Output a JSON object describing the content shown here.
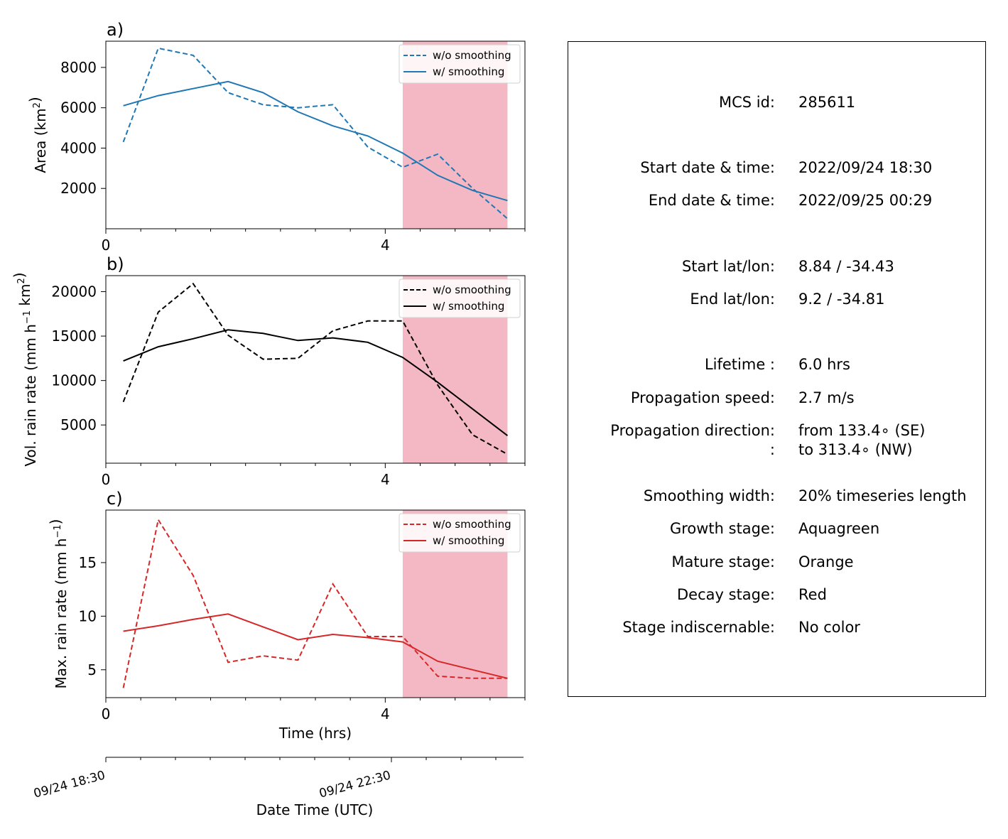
{
  "chart_data": [
    {
      "type": "line",
      "panel_label": "a)",
      "ylabel_main": "Area  (km",
      "ylabel_sup": "2",
      "ylabel_end": ")",
      "x": [
        0.25,
        0.75,
        1.25,
        1.75,
        2.25,
        2.75,
        3.25,
        3.75,
        4.25,
        4.75,
        5.25,
        5.75
      ],
      "xlim": [
        0,
        6
      ],
      "ylim": [
        0,
        9300
      ],
      "xticks": [
        0,
        4
      ],
      "yticks": [
        2000,
        4000,
        6000,
        8000
      ],
      "shade_range": [
        4.25,
        5.75
      ],
      "color": "#1f77b4",
      "legend_position": "upper right",
      "series": [
        {
          "name": "w/o smoothing",
          "dash": true,
          "values": [
            4300,
            8950,
            8600,
            6750,
            6150,
            6000,
            6150,
            4050,
            3050,
            3700,
            2000,
            500
          ]
        },
        {
          "name": "w/ smoothing",
          "dash": false,
          "values": [
            6100,
            6600,
            6950,
            7300,
            6750,
            5800,
            5100,
            4600,
            3750,
            2650,
            1900,
            1400
          ]
        }
      ]
    },
    {
      "type": "line",
      "panel_label": "b)",
      "ylabel_main": "Vol. rain rate (mm h",
      "ylabel_sup": "−1",
      "ylabel_mid": " km",
      "ylabel_sup2": "2",
      "ylabel_end": ")",
      "x": [
        0.25,
        0.75,
        1.25,
        1.75,
        2.25,
        2.75,
        3.25,
        3.75,
        4.25,
        4.75,
        5.25,
        5.75
      ],
      "xlim": [
        0,
        6
      ],
      "ylim": [
        700,
        21800
      ],
      "xticks": [
        0,
        4
      ],
      "yticks": [
        5000,
        10000,
        15000,
        20000
      ],
      "shade_range": [
        4.25,
        5.75
      ],
      "color": "#000000",
      "legend_position": "upper right",
      "series": [
        {
          "name": "w/o smoothing",
          "dash": true,
          "values": [
            7600,
            17700,
            20900,
            15100,
            12400,
            12500,
            15600,
            16700,
            16700,
            9500,
            3900,
            1700
          ]
        },
        {
          "name": "w/ smoothing",
          "dash": false,
          "values": [
            12200,
            13800,
            14700,
            15700,
            15300,
            14500,
            14800,
            14300,
            12600,
            9800,
            6800,
            3800
          ]
        }
      ]
    },
    {
      "type": "line",
      "panel_label": "c)",
      "ylabel_main": "Max. rain rate  (mm h",
      "ylabel_sup": "−1",
      "ylabel_end": ")",
      "xlabel": "Time (hrs)",
      "x": [
        0.25,
        0.75,
        1.25,
        1.75,
        2.25,
        2.75,
        3.25,
        3.75,
        4.25,
        4.75,
        5.25,
        5.75
      ],
      "xlim": [
        0,
        6
      ],
      "ylim": [
        2.4,
        19.9
      ],
      "xticks": [
        0,
        4
      ],
      "yticks": [
        5,
        10,
        15
      ],
      "shade_range": [
        4.25,
        5.75
      ],
      "color": "#d62728",
      "legend_position": "upper right",
      "series": [
        {
          "name": "w/o smoothing",
          "dash": true,
          "values": [
            3.3,
            19.0,
            13.8,
            5.7,
            6.3,
            5.9,
            13.0,
            8.1,
            8.1,
            4.4,
            4.2,
            4.2
          ]
        },
        {
          "name": "w/ smoothing",
          "dash": false,
          "values": [
            8.6,
            9.1,
            9.7,
            10.2,
            9.0,
            7.8,
            8.3,
            8.0,
            7.6,
            5.8,
            5.0,
            4.2
          ]
        }
      ]
    }
  ],
  "datetime_axis": {
    "xlabel": "Date Time (UTC)",
    "tick_labels": [
      "09/24 18:30",
      "09/24 22:30"
    ],
    "tick_hours": [
      0,
      4
    ]
  },
  "shade_color": "#f4b8c4",
  "info": [
    {
      "label": "MCS id:",
      "value": "285611"
    },
    {
      "label": "Start date & time:",
      "value": "2022/09/24 18:30"
    },
    {
      "label": "End date & time:",
      "value": "2022/09/25 00:29"
    },
    {
      "label": "Start lat/lon:",
      "value": "8.84 / -34.43"
    },
    {
      "label": "End lat/lon:",
      "value": "9.2 / -34.81"
    },
    {
      "label": "Lifetime :",
      "value": "6.0 hrs"
    },
    {
      "label": "Propagation speed:",
      "value": "2.7 m/s"
    },
    {
      "label": "Propagation direction:",
      "value": "from 133.4∘ (SE)"
    },
    {
      "label": ":",
      "value": "to   313.4∘ (NW)"
    },
    {
      "label": "Smoothing width:",
      "value": "20% timeseries length"
    },
    {
      "label": "Growth stage:",
      "value": "Aquagreen"
    },
    {
      "label": "Mature stage:",
      "value": "Orange"
    },
    {
      "label": "Decay stage:",
      "value": "Red"
    },
    {
      "label": "Stage indiscernable:",
      "value": "No color"
    }
  ]
}
